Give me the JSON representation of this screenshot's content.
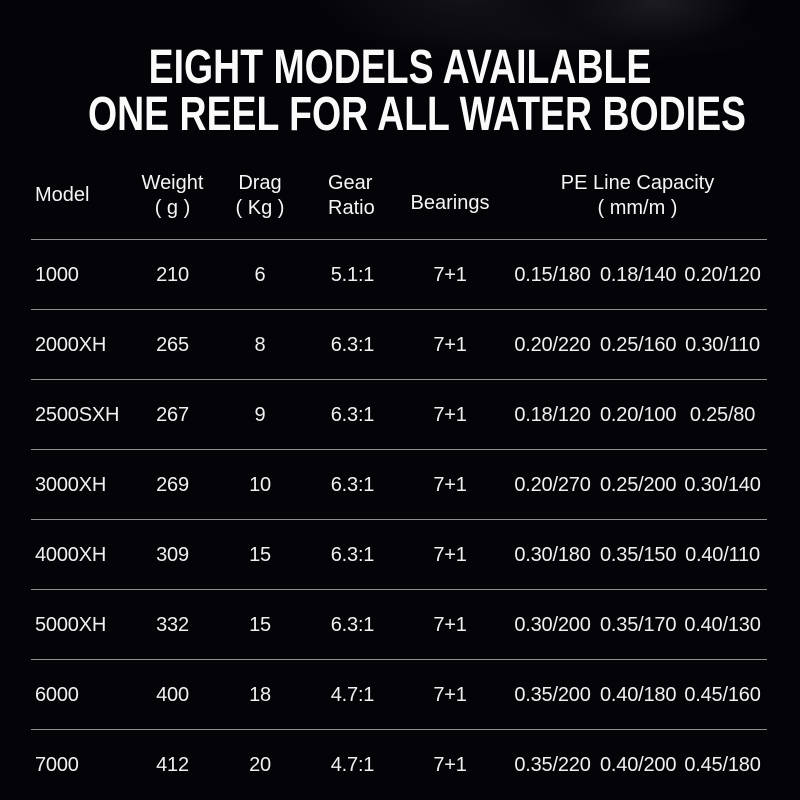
{
  "title": {
    "line1": "EIGHT MODELS AVAILABLE",
    "line2": "ONE REEL FOR ALL WATER BODIES"
  },
  "table": {
    "headers": {
      "model": "Model",
      "weight_l1": "Weight",
      "weight_l2": "( g )",
      "drag_l1": "Drag",
      "drag_l2": "( Kg )",
      "gear_l1": "Gear",
      "gear_l2": "Ratio",
      "bearings": "Bearings",
      "pe_l1": "PE Line Capacity",
      "pe_l2": "( mm/m )"
    },
    "rows": [
      {
        "model": "1000",
        "weight": "210",
        "drag": "6",
        "gear_ratio": "5.1:1",
        "bearings": "7+1",
        "pe": [
          "0.15/180",
          "0.18/140",
          "0.20/120"
        ]
      },
      {
        "model": "2000XH",
        "weight": "265",
        "drag": "8",
        "gear_ratio": "6.3:1",
        "bearings": "7+1",
        "pe": [
          "0.20/220",
          "0.25/160",
          "0.30/110"
        ]
      },
      {
        "model": "2500SXH",
        "weight": "267",
        "drag": "9",
        "gear_ratio": "6.3:1",
        "bearings": "7+1",
        "pe": [
          "0.18/120",
          "0.20/100",
          "0.25/80"
        ]
      },
      {
        "model": "3000XH",
        "weight": "269",
        "drag": "10",
        "gear_ratio": "6.3:1",
        "bearings": "7+1",
        "pe": [
          "0.20/270",
          "0.25/200",
          "0.30/140"
        ]
      },
      {
        "model": "4000XH",
        "weight": "309",
        "drag": "15",
        "gear_ratio": "6.3:1",
        "bearings": "7+1",
        "pe": [
          "0.30/180",
          "0.35/150",
          "0.40/110"
        ]
      },
      {
        "model": "5000XH",
        "weight": "332",
        "drag": "15",
        "gear_ratio": "6.3:1",
        "bearings": "7+1",
        "pe": [
          "0.30/200",
          "0.35/170",
          "0.40/130"
        ]
      },
      {
        "model": "6000",
        "weight": "400",
        "drag": "18",
        "gear_ratio": "4.7:1",
        "bearings": "7+1",
        "pe": [
          "0.35/200",
          "0.40/180",
          "0.45/160"
        ]
      },
      {
        "model": "7000",
        "weight": "412",
        "drag": "20",
        "gear_ratio": "4.7:1",
        "bearings": "7+1",
        "pe": [
          "0.35/220",
          "0.40/200",
          "0.45/180"
        ]
      }
    ]
  },
  "chart_data": {
    "type": "table",
    "title": "EIGHT MODELS AVAILABLE — ONE REEL FOR ALL WATER BODIES",
    "columns": [
      "Model",
      "Weight ( g )",
      "Drag ( Kg )",
      "Gear Ratio",
      "Bearings",
      "PE Line Capacity ( mm/m )"
    ],
    "rows": [
      [
        "1000",
        "210",
        "6",
        "5.1:1",
        "7+1",
        "0.15/180 0.18/140 0.20/120"
      ],
      [
        "2000XH",
        "265",
        "8",
        "6.3:1",
        "7+1",
        "0.20/220 0.25/160 0.30/110"
      ],
      [
        "2500SXH",
        "267",
        "9",
        "6.3:1",
        "7+1",
        "0.18/120 0.20/100 0.25/80"
      ],
      [
        "3000XH",
        "269",
        "10",
        "6.3:1",
        "7+1",
        "0.20/270 0.25/200 0.30/140"
      ],
      [
        "4000XH",
        "309",
        "15",
        "6.3:1",
        "7+1",
        "0.30/180 0.35/150 0.40/110"
      ],
      [
        "5000XH",
        "332",
        "15",
        "6.3:1",
        "7+1",
        "0.30/200 0.35/170 0.40/130"
      ],
      [
        "6000",
        "400",
        "18",
        "4.7:1",
        "7+1",
        "0.35/200 0.40/180 0.45/160"
      ],
      [
        "7000",
        "412",
        "20",
        "4.7:1",
        "7+1",
        "0.35/220 0.40/200 0.45/180"
      ]
    ]
  },
  "colors": {
    "background": "#040408",
    "text": "#f0f0f0",
    "title_text": "#fafafa",
    "divider": "#8e8e8e"
  }
}
